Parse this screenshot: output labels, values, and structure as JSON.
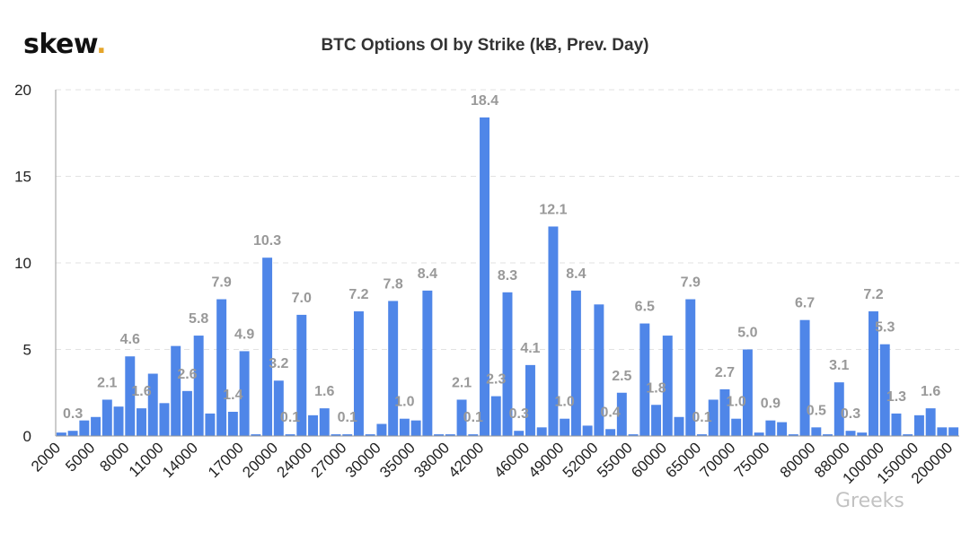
{
  "logo": {
    "text": "skew",
    "dot": ".",
    "dot_color": "#e5a52b"
  },
  "watermark": "Greeks",
  "colors": {
    "bar": "#4f86e8",
    "label": "#999999",
    "grid": "#e2e2e2",
    "axis": "#999999",
    "tick": "#222222"
  },
  "chart_data": {
    "type": "bar",
    "title": "BTC Options OI by Strike (kɃ, Prev. Day)",
    "xlabel": "",
    "ylabel": "",
    "ylim": [
      0,
      20
    ],
    "yticks": [
      0,
      5,
      10,
      15,
      20
    ],
    "grid": "horizontal dashed",
    "legend": "none",
    "x_tick_labels": [
      "2000",
      "5000",
      "8000",
      "11000",
      "14000",
      "17000",
      "20000",
      "24000",
      "27000",
      "30000",
      "35000",
      "38000",
      "42000",
      "46000",
      "49000",
      "52000",
      "55000",
      "60000",
      "65000",
      "70000",
      "75000",
      "80000",
      "88000",
      "100000",
      "150000",
      "200000"
    ],
    "values": [
      0.2,
      0.3,
      0.9,
      1.1,
      2.1,
      1.7,
      4.6,
      1.6,
      3.6,
      1.9,
      5.2,
      2.6,
      5.8,
      1.3,
      7.9,
      1.4,
      4.9,
      0.1,
      10.3,
      3.2,
      0.1,
      7.0,
      1.2,
      1.6,
      0.1,
      0.1,
      7.2,
      0.1,
      0.7,
      7.8,
      1.0,
      0.9,
      8.4,
      0.1,
      0.1,
      2.1,
      0.1,
      18.4,
      2.3,
      8.3,
      0.3,
      4.1,
      0.5,
      12.1,
      1.0,
      8.4,
      0.6,
      7.6,
      0.4,
      2.5,
      0.1,
      6.5,
      1.8,
      5.8,
      1.1,
      7.9,
      0.1,
      2.1,
      2.7,
      1.0,
      5.0,
      0.2,
      0.9,
      0.8,
      0.1,
      6.7,
      0.5,
      0.1,
      3.1,
      0.3,
      0.2,
      7.2,
      5.3,
      1.3,
      0.1,
      1.2,
      1.6,
      0.5,
      0.5
    ],
    "data_labels": [
      null,
      "0.3",
      null,
      null,
      "2.1",
      null,
      "4.6",
      "1.6",
      null,
      null,
      null,
      "2.6",
      "5.8",
      null,
      "7.9",
      "1.4",
      "4.9",
      null,
      "10.3",
      "3.2",
      "0.1",
      "7.0",
      null,
      "1.6",
      null,
      "0.1",
      "7.2",
      null,
      null,
      "7.8",
      "1.0",
      null,
      "8.4",
      null,
      null,
      "2.1",
      "0.1",
      "18.4",
      "2.3",
      "8.3",
      "0.3",
      "4.1",
      null,
      "12.1",
      "1.0",
      "8.4",
      null,
      null,
      "0.4",
      "2.5",
      null,
      "6.5",
      "1.8",
      null,
      null,
      "7.9",
      "0.1",
      null,
      "2.7",
      "1.0",
      "5.0",
      null,
      "0.9",
      null,
      null,
      "6.7",
      "0.5",
      null,
      "3.1",
      "0.3",
      null,
      "7.2",
      "5.3",
      "1.3",
      null,
      null,
      "1.6",
      null,
      null
    ]
  }
}
